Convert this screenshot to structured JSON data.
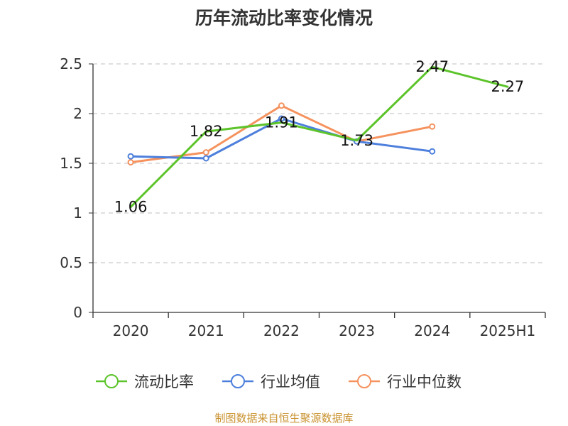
{
  "chart_data": {
    "type": "line",
    "title": "历年流动比率变化情况",
    "categories": [
      "2020",
      "2021",
      "2022",
      "2023",
      "2024",
      "2025H1"
    ],
    "y_ticks": [
      "0",
      "0.5",
      "1",
      "1.5",
      "2",
      "2.5"
    ],
    "ylim": [
      0,
      2.5
    ],
    "grid": "horizontal-dashed",
    "legend_position": "bottom",
    "series": [
      {
        "name": "流动比率",
        "color": "#5cc42a",
        "values": [
          1.06,
          1.82,
          1.91,
          1.73,
          2.47,
          2.27
        ],
        "labels": [
          "1.06",
          "1.82",
          "1.91",
          "1.73",
          "2.47",
          "2.27"
        ]
      },
      {
        "name": "行业均值",
        "color": "#4d7fdc",
        "values": [
          1.57,
          1.55,
          1.95,
          1.72,
          1.62,
          null
        ]
      },
      {
        "name": "行业中位数",
        "color": "#f5925e",
        "values": [
          1.51,
          1.61,
          2.08,
          1.72,
          1.87,
          null
        ]
      }
    ]
  },
  "footer": {
    "source": "制图数据来自恒生聚源数据库"
  }
}
